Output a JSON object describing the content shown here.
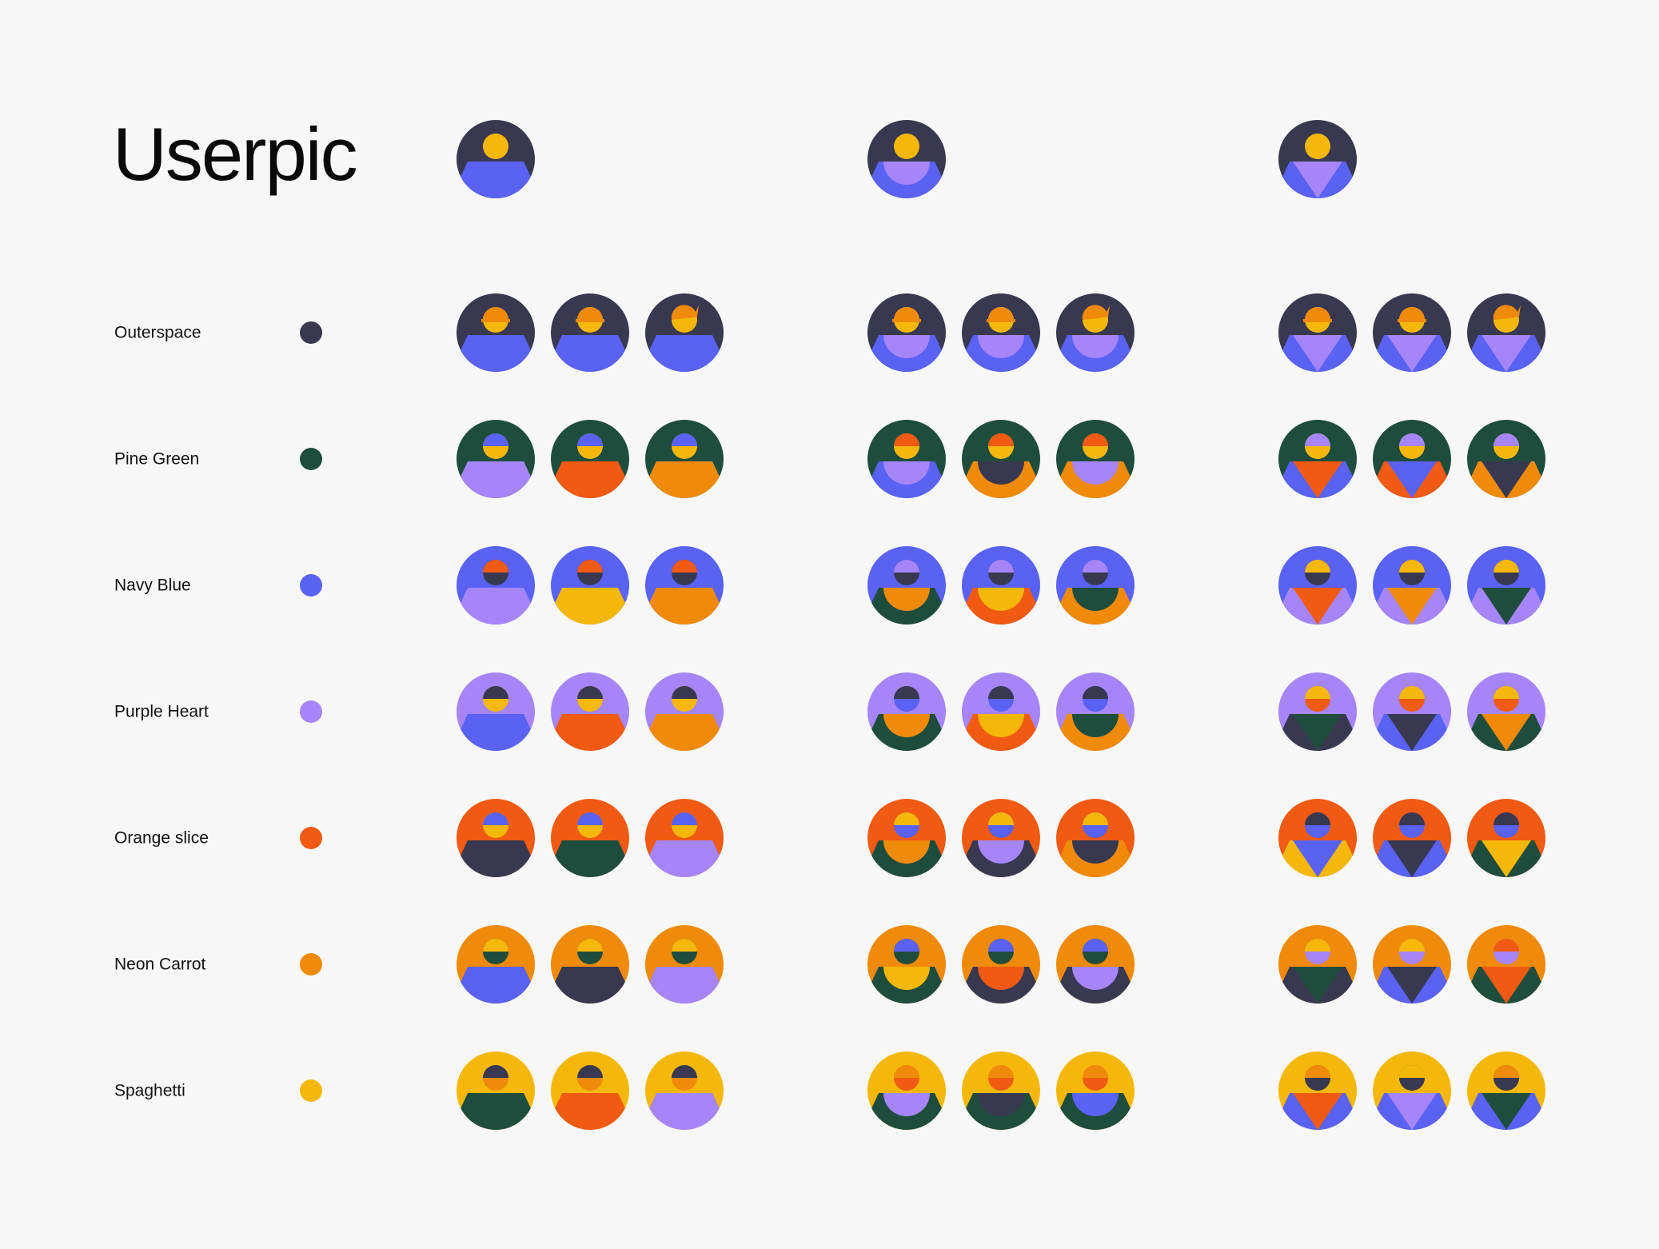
{
  "title": "Userpic",
  "colors": {
    "outerspace": "#383851",
    "pine": "#1f4d3d",
    "navy": "#5962f2",
    "purple": "#a585f7",
    "orange": "#f05a12",
    "carrot": "#f08a0a",
    "spaghetti": "#f5b80a"
  },
  "header_avatars": [
    {
      "style": "shoulders",
      "bg": "#383851",
      "head": "#f5b80a",
      "hair": null,
      "hair_type": "none",
      "body": "#5962f2",
      "inner": null
    },
    {
      "style": "bowl",
      "bg": "#383851",
      "head": "#f5b80a",
      "hair": null,
      "hair_type": "none",
      "body": "#5962f2",
      "inner": "#a585f7"
    },
    {
      "style": "triangle",
      "bg": "#383851",
      "head": "#f5b80a",
      "hair": null,
      "hair_type": "none",
      "body": "#5962f2",
      "inner": "#a585f7"
    }
  ],
  "rows": [
    {
      "label": "Outerspace",
      "swatch": "#383851",
      "avatars": [
        {
          "style": "shoulders",
          "bg": "#383851",
          "head": "#f5b80a",
          "hair": "#f08a0a",
          "hair_type": "cap",
          "body": "#5962f2",
          "inner": null
        },
        {
          "style": "shoulders",
          "bg": "#383851",
          "head": "#f5b80a",
          "hair": "#f08a0a",
          "hair_type": "cap",
          "body": "#5962f2",
          "inner": null
        },
        {
          "style": "shoulders",
          "bg": "#383851",
          "head": "#f5b80a",
          "hair": "#f08a0a",
          "hair_type": "swoop",
          "body": "#5962f2",
          "inner": null
        },
        {
          "style": "bowl",
          "bg": "#383851",
          "head": "#f5b80a",
          "hair": "#f08a0a",
          "hair_type": "cap",
          "body": "#5962f2",
          "inner": "#a585f7"
        },
        {
          "style": "bowl",
          "bg": "#383851",
          "head": "#f5b80a",
          "hair": "#f08a0a",
          "hair_type": "cap",
          "body": "#5962f2",
          "inner": "#a585f7"
        },
        {
          "style": "bowl",
          "bg": "#383851",
          "head": "#f5b80a",
          "hair": "#f08a0a",
          "hair_type": "swoop",
          "body": "#5962f2",
          "inner": "#a585f7"
        },
        {
          "style": "triangle",
          "bg": "#383851",
          "head": "#f5b80a",
          "hair": "#f08a0a",
          "hair_type": "cap",
          "body": "#5962f2",
          "inner": "#a585f7"
        },
        {
          "style": "triangle",
          "bg": "#383851",
          "head": "#f5b80a",
          "hair": "#f08a0a",
          "hair_type": "cap",
          "body": "#5962f2",
          "inner": "#a585f7"
        },
        {
          "style": "triangle",
          "bg": "#383851",
          "head": "#f5b80a",
          "hair": "#f08a0a",
          "hair_type": "swoop",
          "body": "#5962f2",
          "inner": "#a585f7"
        }
      ]
    },
    {
      "label": "Pine Green",
      "swatch": "#1f4d3d",
      "avatars": [
        {
          "style": "shoulders",
          "bg": "#1f4d3d",
          "head": "#f5b80a",
          "hair": "#5962f2",
          "hair_type": "half",
          "body": "#a585f7",
          "inner": null
        },
        {
          "style": "shoulders",
          "bg": "#1f4d3d",
          "head": "#f5b80a",
          "hair": "#5962f2",
          "hair_type": "half",
          "body": "#f05a12",
          "inner": null
        },
        {
          "style": "shoulders",
          "bg": "#1f4d3d",
          "head": "#f5b80a",
          "hair": "#5962f2",
          "hair_type": "half",
          "body": "#f08a0a",
          "inner": null
        },
        {
          "style": "bowl",
          "bg": "#1f4d3d",
          "head": "#f5b80a",
          "hair": "#f05a12",
          "hair_type": "half",
          "body": "#5962f2",
          "inner": "#a585f7"
        },
        {
          "style": "bowl",
          "bg": "#1f4d3d",
          "head": "#f5b80a",
          "hair": "#f05a12",
          "hair_type": "half",
          "body": "#f08a0a",
          "inner": "#383851"
        },
        {
          "style": "bowl",
          "bg": "#1f4d3d",
          "head": "#f5b80a",
          "hair": "#f05a12",
          "hair_type": "half",
          "body": "#f08a0a",
          "inner": "#a585f7"
        },
        {
          "style": "triangle",
          "bg": "#1f4d3d",
          "head": "#f5b80a",
          "hair": "#a585f7",
          "hair_type": "half",
          "body": "#5962f2",
          "inner": "#f05a12"
        },
        {
          "style": "triangle",
          "bg": "#1f4d3d",
          "head": "#f5b80a",
          "hair": "#a585f7",
          "hair_type": "half",
          "body": "#f05a12",
          "inner": "#5962f2"
        },
        {
          "style": "triangle",
          "bg": "#1f4d3d",
          "head": "#f5b80a",
          "hair": "#a585f7",
          "hair_type": "half",
          "body": "#f08a0a",
          "inner": "#383851"
        }
      ]
    },
    {
      "label": "Navy Blue",
      "swatch": "#5962f2",
      "avatars": [
        {
          "style": "shoulders",
          "bg": "#5962f2",
          "head": "#383851",
          "hair": "#f05a12",
          "hair_type": "half",
          "body": "#a585f7",
          "inner": null
        },
        {
          "style": "shoulders",
          "bg": "#5962f2",
          "head": "#383851",
          "hair": "#f05a12",
          "hair_type": "half",
          "body": "#f5b80a",
          "inner": null
        },
        {
          "style": "shoulders",
          "bg": "#5962f2",
          "head": "#383851",
          "hair": "#f05a12",
          "hair_type": "half",
          "body": "#f08a0a",
          "inner": null
        },
        {
          "style": "bowl",
          "bg": "#5962f2",
          "head": "#383851",
          "hair": "#a585f7",
          "hair_type": "half",
          "body": "#1f4d3d",
          "inner": "#f08a0a"
        },
        {
          "style": "bowl",
          "bg": "#5962f2",
          "head": "#383851",
          "hair": "#a585f7",
          "hair_type": "half",
          "body": "#f05a12",
          "inner": "#f5b80a"
        },
        {
          "style": "bowl",
          "bg": "#5962f2",
          "head": "#383851",
          "hair": "#a585f7",
          "hair_type": "half",
          "body": "#f08a0a",
          "inner": "#1f4d3d"
        },
        {
          "style": "triangle",
          "bg": "#5962f2",
          "head": "#383851",
          "hair": "#f5b80a",
          "hair_type": "half",
          "body": "#a585f7",
          "inner": "#f05a12"
        },
        {
          "style": "triangle",
          "bg": "#5962f2",
          "head": "#383851",
          "hair": "#f5b80a",
          "hair_type": "half",
          "body": "#a585f7",
          "inner": "#f08a0a"
        },
        {
          "style": "triangle",
          "bg": "#5962f2",
          "head": "#383851",
          "hair": "#f5b80a",
          "hair_type": "half",
          "body": "#a585f7",
          "inner": "#1f4d3d"
        }
      ]
    },
    {
      "label": "Purple Heart",
      "swatch": "#a585f7",
      "avatars": [
        {
          "style": "shoulders",
          "bg": "#a585f7",
          "head": "#f5b80a",
          "hair": "#383851",
          "hair_type": "half",
          "body": "#5962f2",
          "inner": null
        },
        {
          "style": "shoulders",
          "bg": "#a585f7",
          "head": "#f5b80a",
          "hair": "#383851",
          "hair_type": "half",
          "body": "#f05a12",
          "inner": null
        },
        {
          "style": "shoulders",
          "bg": "#a585f7",
          "head": "#f5b80a",
          "hair": "#383851",
          "hair_type": "half",
          "body": "#f08a0a",
          "inner": null
        },
        {
          "style": "bowl",
          "bg": "#a585f7",
          "head": "#5962f2",
          "hair": "#383851",
          "hair_type": "half",
          "body": "#1f4d3d",
          "inner": "#f08a0a"
        },
        {
          "style": "bowl",
          "bg": "#a585f7",
          "head": "#5962f2",
          "hair": "#383851",
          "hair_type": "half",
          "body": "#f05a12",
          "inner": "#f5b80a"
        },
        {
          "style": "bowl",
          "bg": "#a585f7",
          "head": "#5962f2",
          "hair": "#383851",
          "hair_type": "half",
          "body": "#f08a0a",
          "inner": "#1f4d3d"
        },
        {
          "style": "triangle",
          "bg": "#a585f7",
          "head": "#f05a12",
          "hair": "#f5b80a",
          "hair_type": "half",
          "body": "#383851",
          "inner": "#1f4d3d"
        },
        {
          "style": "triangle",
          "bg": "#a585f7",
          "head": "#f05a12",
          "hair": "#f5b80a",
          "hair_type": "half",
          "body": "#5962f2",
          "inner": "#383851"
        },
        {
          "style": "triangle",
          "bg": "#a585f7",
          "head": "#f05a12",
          "hair": "#f5b80a",
          "hair_type": "half",
          "body": "#1f4d3d",
          "inner": "#f08a0a"
        }
      ]
    },
    {
      "label": "Orange slice",
      "swatch": "#f05a12",
      "avatars": [
        {
          "style": "shoulders",
          "bg": "#f05a12",
          "head": "#f5b80a",
          "hair": "#5962f2",
          "hair_type": "half",
          "body": "#383851",
          "inner": null
        },
        {
          "style": "shoulders",
          "bg": "#f05a12",
          "head": "#f5b80a",
          "hair": "#5962f2",
          "hair_type": "half",
          "body": "#1f4d3d",
          "inner": null
        },
        {
          "style": "shoulders",
          "bg": "#f05a12",
          "head": "#f5b80a",
          "hair": "#5962f2",
          "hair_type": "half",
          "body": "#a585f7",
          "inner": null
        },
        {
          "style": "bowl",
          "bg": "#f05a12",
          "head": "#5962f2",
          "hair": "#f5b80a",
          "hair_type": "half",
          "body": "#1f4d3d",
          "inner": "#f08a0a"
        },
        {
          "style": "bowl",
          "bg": "#f05a12",
          "head": "#5962f2",
          "hair": "#f5b80a",
          "hair_type": "half",
          "body": "#383851",
          "inner": "#a585f7"
        },
        {
          "style": "bowl",
          "bg": "#f05a12",
          "head": "#5962f2",
          "hair": "#f5b80a",
          "hair_type": "half",
          "body": "#f08a0a",
          "inner": "#383851"
        },
        {
          "style": "triangle",
          "bg": "#f05a12",
          "head": "#5962f2",
          "hair": "#383851",
          "hair_type": "half",
          "body": "#f5b80a",
          "inner": "#5962f2"
        },
        {
          "style": "triangle",
          "bg": "#f05a12",
          "head": "#5962f2",
          "hair": "#383851",
          "hair_type": "half",
          "body": "#5962f2",
          "inner": "#383851"
        },
        {
          "style": "triangle",
          "bg": "#f05a12",
          "head": "#5962f2",
          "hair": "#383851",
          "hair_type": "half",
          "body": "#1f4d3d",
          "inner": "#f5b80a"
        }
      ]
    },
    {
      "label": "Neon Carrot",
      "swatch": "#f08a0a",
      "avatars": [
        {
          "style": "shoulders",
          "bg": "#f08a0a",
          "head": "#1f4d3d",
          "hair": "#f5b80a",
          "hair_type": "half",
          "body": "#5962f2",
          "inner": null
        },
        {
          "style": "shoulders",
          "bg": "#f08a0a",
          "head": "#1f4d3d",
          "hair": "#f5b80a",
          "hair_type": "half",
          "body": "#383851",
          "inner": null
        },
        {
          "style": "shoulders",
          "bg": "#f08a0a",
          "head": "#1f4d3d",
          "hair": "#f5b80a",
          "hair_type": "half",
          "body": "#a585f7",
          "inner": null
        },
        {
          "style": "bowl",
          "bg": "#f08a0a",
          "head": "#1f4d3d",
          "hair": "#5962f2",
          "hair_type": "half",
          "body": "#1f4d3d",
          "inner": "#f5b80a"
        },
        {
          "style": "bowl",
          "bg": "#f08a0a",
          "head": "#1f4d3d",
          "hair": "#5962f2",
          "hair_type": "half",
          "body": "#383851",
          "inner": "#f05a12"
        },
        {
          "style": "bowl",
          "bg": "#f08a0a",
          "head": "#1f4d3d",
          "hair": "#5962f2",
          "hair_type": "half",
          "body": "#383851",
          "inner": "#a585f7"
        },
        {
          "style": "triangle",
          "bg": "#f08a0a",
          "head": "#a585f7",
          "hair": "#f5b80a",
          "hair_type": "half",
          "body": "#383851",
          "inner": "#1f4d3d"
        },
        {
          "style": "triangle",
          "bg": "#f08a0a",
          "head": "#a585f7",
          "hair": "#f5b80a",
          "hair_type": "half",
          "body": "#5962f2",
          "inner": "#383851"
        },
        {
          "style": "triangle",
          "bg": "#f08a0a",
          "head": "#a585f7",
          "hair": "#f05a12",
          "hair_type": "half",
          "body": "#1f4d3d",
          "inner": "#f05a12"
        }
      ]
    },
    {
      "label": "Spaghetti",
      "swatch": "#f5b80a",
      "avatars": [
        {
          "style": "shoulders",
          "bg": "#f5b80a",
          "head": "#f08a0a",
          "hair": "#383851",
          "hair_type": "half",
          "body": "#1f4d3d",
          "inner": null
        },
        {
          "style": "shoulders",
          "bg": "#f5b80a",
          "head": "#f08a0a",
          "hair": "#383851",
          "hair_type": "half",
          "body": "#f05a12",
          "inner": null
        },
        {
          "style": "shoulders",
          "bg": "#f5b80a",
          "head": "#f08a0a",
          "hair": "#383851",
          "hair_type": "half",
          "body": "#a585f7",
          "inner": null
        },
        {
          "style": "bowl",
          "bg": "#f5b80a",
          "head": "#f05a12",
          "hair": "#f08a0a",
          "hair_type": "half",
          "body": "#1f4d3d",
          "inner": "#a585f7"
        },
        {
          "style": "bowl",
          "bg": "#f5b80a",
          "head": "#f05a12",
          "hair": "#f08a0a",
          "hair_type": "half",
          "body": "#1f4d3d",
          "inner": "#383851"
        },
        {
          "style": "bowl",
          "bg": "#f5b80a",
          "head": "#f05a12",
          "hair": "#f08a0a",
          "hair_type": "half",
          "body": "#1f4d3d",
          "inner": "#5962f2"
        },
        {
          "style": "triangle",
          "bg": "#f5b80a",
          "head": "#383851",
          "hair": "#f08a0a",
          "hair_type": "half",
          "body": "#5962f2",
          "inner": "#f05a12"
        },
        {
          "style": "triangle",
          "bg": "#f5b80a",
          "head": "#383851",
          "hair": "#f5b80a",
          "hair_type": "half",
          "body": "#5962f2",
          "inner": "#a585f7"
        },
        {
          "style": "triangle",
          "bg": "#f5b80a",
          "head": "#383851",
          "hair": "#f08a0a",
          "hair_type": "half",
          "body": "#5962f2",
          "inner": "#1f4d3d"
        }
      ]
    }
  ]
}
